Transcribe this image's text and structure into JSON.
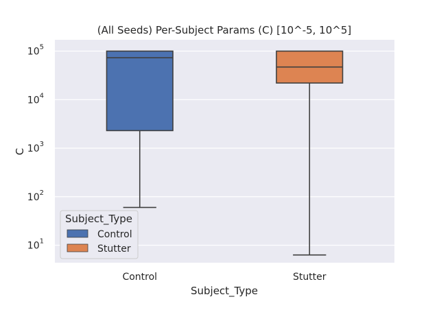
{
  "chart_data": {
    "type": "box",
    "title": "(All Seeds) Per-Subject Params (C) [10^-5, 10^5]",
    "xlabel": "Subject_Type",
    "ylabel": "C",
    "yscale": "log",
    "ylim": [
      4,
      100000
    ],
    "yticks": [
      {
        "value": 10,
        "base": "10",
        "exp": "1"
      },
      {
        "value": 100,
        "base": "10",
        "exp": "2"
      },
      {
        "value": 1000,
        "base": "10",
        "exp": "3"
      },
      {
        "value": 10000,
        "base": "10",
        "exp": "4"
      },
      {
        "value": 100000,
        "base": "10",
        "exp": "5"
      }
    ],
    "categories": [
      "Control",
      "Stutter"
    ],
    "series": [
      {
        "name": "Control",
        "color": "#4C72B0",
        "whisker_low": 60,
        "q1": 2300,
        "median": 73000,
        "q3": 100000,
        "whisker_high": 100000
      },
      {
        "name": "Stutter",
        "color": "#DD8452",
        "whisker_low": 6.3,
        "q1": 22000,
        "median": 47000,
        "q3": 100000,
        "whisker_high": 100000
      }
    ],
    "grid": true,
    "legend": {
      "title": "Subject_Type",
      "position": "lower-left",
      "entries": [
        "Control",
        "Stutter"
      ]
    },
    "colors": {
      "background": "#EAEAF2",
      "grid": "#FFFFFF",
      "box_edge": "#3F3F3F"
    }
  }
}
